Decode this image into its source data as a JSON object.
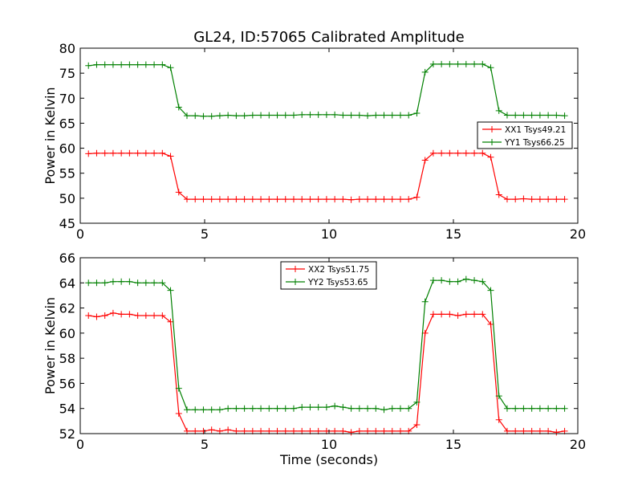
{
  "title": "GL24, ID:57065 Calibrated Amplitude",
  "colors": {
    "red": "#ff0000",
    "green": "#008000",
    "axis": "#000000"
  },
  "chart_data": [
    {
      "type": "line",
      "title": "GL24, ID:57065 Calibrated Amplitude",
      "xlabel": "",
      "ylabel": "Power in Kelvin",
      "xlim": [
        0,
        20
      ],
      "ylim": [
        45,
        80
      ],
      "xticks": [
        0,
        5,
        10,
        15,
        20
      ],
      "yticks": [
        45,
        50,
        55,
        60,
        65,
        70,
        75,
        80
      ],
      "grid": false,
      "legend_position": "right",
      "marker": "plus",
      "series": [
        {
          "name": "XX1 Tsys49.21",
          "color": "#ff0000",
          "x": [
            0.33,
            0.66,
            0.99,
            1.32,
            1.65,
            1.98,
            2.31,
            2.64,
            2.97,
            3.3,
            3.63,
            3.96,
            4.29,
            4.62,
            4.95,
            5.28,
            5.61,
            5.94,
            6.27,
            6.6,
            6.93,
            7.26,
            7.59,
            7.92,
            8.25,
            8.58,
            8.91,
            9.24,
            9.57,
            9.9,
            10.23,
            10.56,
            10.89,
            11.22,
            11.55,
            11.88,
            12.21,
            12.54,
            12.87,
            13.2,
            13.53,
            13.86,
            14.19,
            14.52,
            14.85,
            15.18,
            15.51,
            15.84,
            16.17,
            16.5,
            16.83,
            17.16,
            17.49,
            17.82,
            18.15,
            18.48,
            18.81,
            19.14,
            19.47
          ],
          "values": [
            58.9,
            59.0,
            59.0,
            59.0,
            59.0,
            59.0,
            59.0,
            59.0,
            59.0,
            59.0,
            58.4,
            51.2,
            49.8,
            49.8,
            49.8,
            49.8,
            49.8,
            49.8,
            49.8,
            49.8,
            49.8,
            49.8,
            49.8,
            49.8,
            49.8,
            49.8,
            49.8,
            49.8,
            49.8,
            49.8,
            49.8,
            49.8,
            49.7,
            49.8,
            49.8,
            49.8,
            49.8,
            49.8,
            49.8,
            49.8,
            50.2,
            57.6,
            59.0,
            59.0,
            59.0,
            59.0,
            59.0,
            59.0,
            59.0,
            58.2,
            50.7,
            49.8,
            49.8,
            49.9,
            49.8,
            49.8,
            49.8,
            49.8,
            49.8
          ]
        },
        {
          "name": "YY1 Tsys66.25",
          "color": "#008000",
          "x": [
            0.33,
            0.66,
            0.99,
            1.32,
            1.65,
            1.98,
            2.31,
            2.64,
            2.97,
            3.3,
            3.63,
            3.96,
            4.29,
            4.62,
            4.95,
            5.28,
            5.61,
            5.94,
            6.27,
            6.6,
            6.93,
            7.26,
            7.59,
            7.92,
            8.25,
            8.58,
            8.91,
            9.24,
            9.57,
            9.9,
            10.23,
            10.56,
            10.89,
            11.22,
            11.55,
            11.88,
            12.21,
            12.54,
            12.87,
            13.2,
            13.53,
            13.86,
            14.19,
            14.52,
            14.85,
            15.18,
            15.51,
            15.84,
            16.17,
            16.5,
            16.83,
            17.16,
            17.49,
            17.82,
            18.15,
            18.48,
            18.81,
            19.14,
            19.47
          ],
          "values": [
            76.5,
            76.7,
            76.7,
            76.7,
            76.7,
            76.7,
            76.7,
            76.7,
            76.7,
            76.7,
            76.1,
            68.2,
            66.5,
            66.5,
            66.4,
            66.4,
            66.5,
            66.6,
            66.5,
            66.5,
            66.6,
            66.6,
            66.6,
            66.6,
            66.6,
            66.6,
            66.7,
            66.7,
            66.7,
            66.7,
            66.7,
            66.6,
            66.6,
            66.6,
            66.5,
            66.6,
            66.6,
            66.6,
            66.6,
            66.6,
            67.0,
            75.2,
            76.8,
            76.8,
            76.8,
            76.8,
            76.8,
            76.8,
            76.8,
            76.1,
            67.5,
            66.6,
            66.6,
            66.6,
            66.6,
            66.6,
            66.6,
            66.6,
            66.5
          ]
        }
      ]
    },
    {
      "type": "line",
      "title": "",
      "xlabel": "Time (seconds)",
      "ylabel": "Power in Kelvin",
      "xlim": [
        0,
        20
      ],
      "ylim": [
        52,
        66
      ],
      "xticks": [
        0,
        5,
        10,
        15,
        20
      ],
      "yticks": [
        52,
        54,
        56,
        58,
        60,
        62,
        64,
        66
      ],
      "grid": false,
      "legend_position": "top-center",
      "marker": "plus",
      "series": [
        {
          "name": "XX2 Tsys51.75",
          "color": "#ff0000",
          "x": [
            0.33,
            0.66,
            0.99,
            1.32,
            1.65,
            1.98,
            2.31,
            2.64,
            2.97,
            3.3,
            3.63,
            3.96,
            4.29,
            4.62,
            4.95,
            5.28,
            5.61,
            5.94,
            6.27,
            6.6,
            6.93,
            7.26,
            7.59,
            7.92,
            8.25,
            8.58,
            8.91,
            9.24,
            9.57,
            9.9,
            10.23,
            10.56,
            10.89,
            11.22,
            11.55,
            11.88,
            12.21,
            12.54,
            12.87,
            13.2,
            13.53,
            13.86,
            14.19,
            14.52,
            14.85,
            15.18,
            15.51,
            15.84,
            16.17,
            16.5,
            16.83,
            17.16,
            17.49,
            17.82,
            18.15,
            18.48,
            18.81,
            19.14,
            19.47
          ],
          "values": [
            61.4,
            61.3,
            61.4,
            61.6,
            61.5,
            61.5,
            61.4,
            61.4,
            61.4,
            61.4,
            60.9,
            53.6,
            52.2,
            52.2,
            52.2,
            52.3,
            52.2,
            52.3,
            52.2,
            52.2,
            52.2,
            52.2,
            52.2,
            52.2,
            52.2,
            52.2,
            52.2,
            52.2,
            52.2,
            52.2,
            52.2,
            52.2,
            52.1,
            52.2,
            52.2,
            52.2,
            52.2,
            52.2,
            52.2,
            52.2,
            52.7,
            60.0,
            61.5,
            61.5,
            61.5,
            61.4,
            61.5,
            61.5,
            61.5,
            60.7,
            53.1,
            52.2,
            52.2,
            52.2,
            52.2,
            52.2,
            52.2,
            52.1,
            52.2
          ]
        },
        {
          "name": "YY2 Tsys53.65",
          "color": "#008000",
          "x": [
            0.33,
            0.66,
            0.99,
            1.32,
            1.65,
            1.98,
            2.31,
            2.64,
            2.97,
            3.3,
            3.63,
            3.96,
            4.29,
            4.62,
            4.95,
            5.28,
            5.61,
            5.94,
            6.27,
            6.6,
            6.93,
            7.26,
            7.59,
            7.92,
            8.25,
            8.58,
            8.91,
            9.24,
            9.57,
            9.9,
            10.23,
            10.56,
            10.89,
            11.22,
            11.55,
            11.88,
            12.21,
            12.54,
            12.87,
            13.2,
            13.53,
            13.86,
            14.19,
            14.52,
            14.85,
            15.18,
            15.51,
            15.84,
            16.17,
            16.5,
            16.83,
            17.16,
            17.49,
            17.82,
            18.15,
            18.48,
            18.81,
            19.14,
            19.47
          ],
          "values": [
            64.0,
            64.0,
            64.0,
            64.1,
            64.1,
            64.1,
            64.0,
            64.0,
            64.0,
            64.0,
            63.4,
            55.6,
            53.9,
            53.9,
            53.9,
            53.9,
            53.9,
            54.0,
            54.0,
            54.0,
            54.0,
            54.0,
            54.0,
            54.0,
            54.0,
            54.0,
            54.1,
            54.1,
            54.1,
            54.1,
            54.2,
            54.1,
            54.0,
            54.0,
            54.0,
            54.0,
            53.9,
            54.0,
            54.0,
            54.0,
            54.5,
            62.5,
            64.2,
            64.2,
            64.1,
            64.1,
            64.3,
            64.2,
            64.1,
            63.4,
            55.0,
            54.0,
            54.0,
            54.0,
            54.0,
            54.0,
            54.0,
            54.0,
            54.0
          ]
        }
      ]
    }
  ]
}
